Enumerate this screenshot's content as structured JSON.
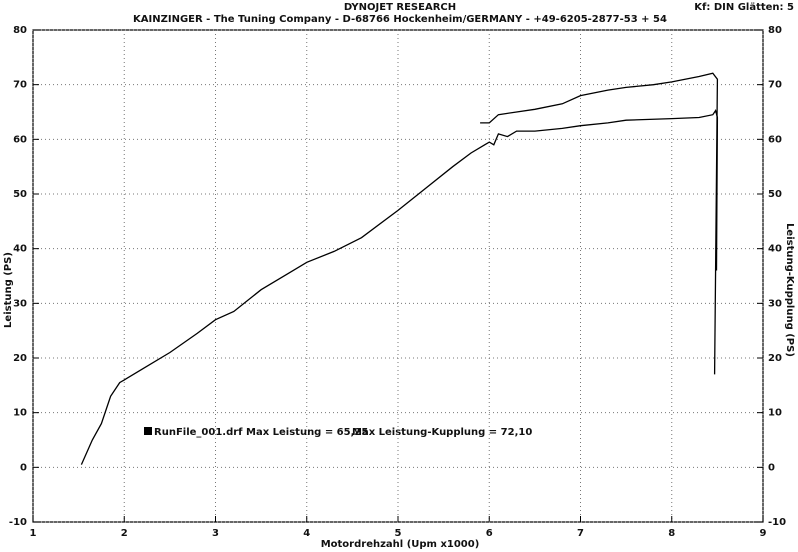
{
  "chart_data": {
    "type": "line",
    "title": "DYNOJET RESEARCH",
    "subtitle": "KAINZINGER - The Tuning Company - D-68766 Hockenheim/GERMANY - +49-6205-2877-53 + 54",
    "corner_note": "Kf: DIN  Glätten: 5",
    "x_label": "Motordrehzahl (Upm x1000)",
    "y_label": "Leistung (PS)",
    "y2_label": "Leistung-Kupplung (PS)",
    "annotations": [
      "RunFile_001.drf Max Leistung = 65,25",
      "Max Leistung-Kupplung = 72,10"
    ],
    "xlim": [
      1,
      9
    ],
    "xticks": [
      1,
      2,
      3,
      4,
      5,
      6,
      7,
      8,
      9
    ],
    "ylim": [
      -10,
      80
    ],
    "yticks": [
      -10,
      0,
      10,
      20,
      30,
      40,
      50,
      60,
      70,
      80
    ],
    "y2lim": [
      -10,
      80
    ],
    "y2ticks": [
      -10,
      0,
      10,
      20,
      30,
      40,
      50,
      60,
      70,
      80
    ],
    "grid": true,
    "series": [
      {
        "name": "Leistung",
        "color": "#000000",
        "x": [
          1.53,
          1.65,
          1.75,
          1.85,
          1.95,
          2.0,
          2.2,
          2.5,
          2.8,
          3.0,
          3.2,
          3.5,
          3.8,
          4.0,
          4.3,
          4.6,
          5.0,
          5.3,
          5.6,
          5.8,
          5.95,
          6.0,
          6.05,
          6.1,
          6.2,
          6.3,
          6.5,
          6.8,
          7.0,
          7.3,
          7.5,
          8.0,
          8.3,
          8.45,
          8.48,
          8.5,
          8.49
        ],
        "values": [
          0.5,
          5,
          8,
          13,
          15.5,
          16,
          18,
          21,
          24.5,
          27,
          28.5,
          32.5,
          35.5,
          37.5,
          39.5,
          42,
          47,
          51,
          55,
          57.5,
          59,
          59.5,
          59,
          61,
          60.5,
          61.5,
          61.5,
          62,
          62.5,
          63,
          63.5,
          63.8,
          64,
          64.5,
          65.25,
          64,
          36
        ]
      },
      {
        "name": "Leistung-Kupplung",
        "color": "#000000",
        "axis": "y2",
        "x": [
          5.9,
          6.0,
          6.1,
          6.3,
          6.5,
          6.8,
          7.0,
          7.3,
          7.5,
          7.8,
          8.0,
          8.3,
          8.45,
          8.5,
          8.47
        ],
        "values": [
          63,
          63,
          64.5,
          65,
          65.5,
          66.5,
          68,
          69,
          69.5,
          70,
          70.5,
          71.5,
          72.1,
          71,
          17
        ]
      }
    ]
  }
}
